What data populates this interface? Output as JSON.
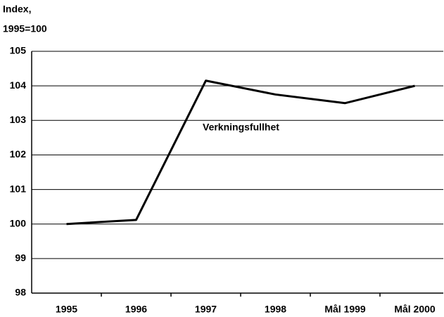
{
  "chart_data": {
    "type": "line",
    "ylabel": [
      "Index,",
      "1995=100"
    ],
    "categories": [
      "1995",
      "1996",
      "1997",
      "1998",
      "Mål 1999",
      "Mål 2000"
    ],
    "series": [
      {
        "name": "Verkningsfullhet",
        "color": "#000000",
        "values": [
          100,
          100.12,
          104.15,
          103.75,
          103.5,
          104.0
        ]
      }
    ],
    "annotations": [
      "Verkningsfullhet"
    ],
    "ylim": [
      98,
      105
    ],
    "yticks": [
      98,
      99,
      100,
      101,
      102,
      103,
      104,
      105
    ],
    "grid": true
  }
}
